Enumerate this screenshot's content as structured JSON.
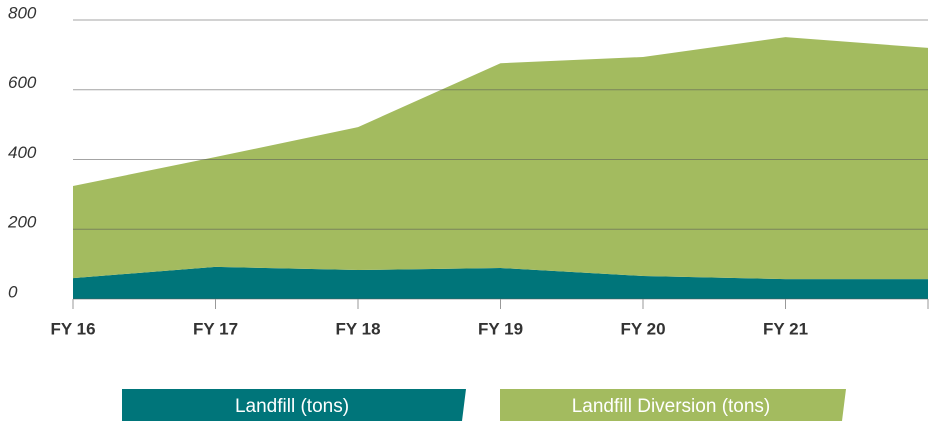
{
  "chart_data": {
    "type": "stacked-area",
    "categories": [
      "FY 16",
      "FY 17",
      "FY 18",
      "FY 19",
      "FY 20",
      "FY 21",
      null
    ],
    "series": [
      {
        "name": "Landfill (tons)",
        "color": "#00757a",
        "values": [
          60,
          92,
          83,
          89,
          66,
          57,
          57
        ]
      },
      {
        "name": "Landfill Diversion (tons)",
        "color": "#a3bb5f",
        "values": [
          264,
          315,
          410,
          587,
          628,
          694,
          663
        ]
      }
    ],
    "ylim": [
      0,
      800
    ],
    "yticks": [
      0,
      200,
      400,
      600,
      800
    ],
    "grid": true
  }
}
